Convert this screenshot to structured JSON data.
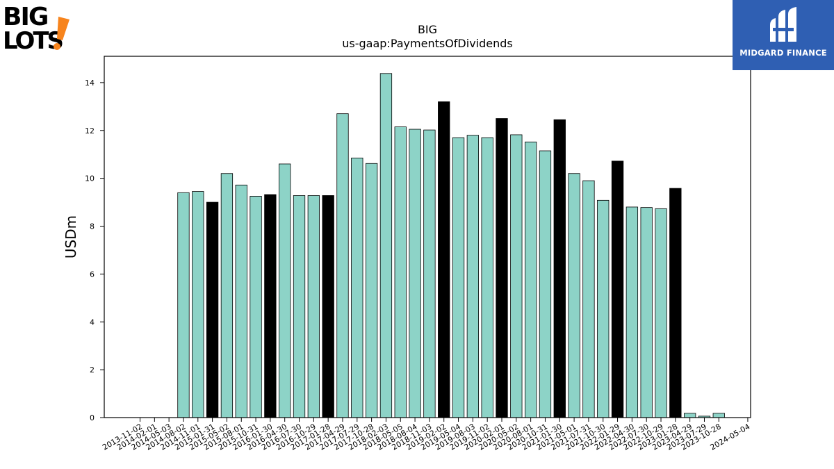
{
  "logos": {
    "left": {
      "name": "Big Lots",
      "line1": "BIG",
      "line2": "LOTS",
      "accent": "!",
      "colors": {
        "text": "#000000",
        "accent": "#f7841d"
      }
    },
    "right": {
      "name": "Midgard Finance",
      "text": "MIDGARD FINANCE",
      "colors": {
        "bg": "#2f5fb3",
        "fg": "#ffffff"
      }
    }
  },
  "chart_data": {
    "type": "bar",
    "title": "BIG",
    "subtitle": "us-gaap:PaymentsOfDividends",
    "ylabel": "USDm",
    "xlabel": "",
    "ylim": [
      0,
      15.1
    ],
    "yticks": [
      0,
      2,
      4,
      6,
      8,
      10,
      12,
      14
    ],
    "grid": false,
    "colors": {
      "quarterly": "#8dd3c7",
      "annual": "#000000",
      "edge": "#000000"
    },
    "categories": [
      "2013-11-02",
      "2014-02-01",
      "2014-05-03",
      "2014-08-02",
      "2014-11-01",
      "2015-01-31",
      "2015-05-02",
      "2015-08-01",
      "2015-10-31",
      "2016-01-30",
      "2016-04-30",
      "2016-07-30",
      "2016-10-29",
      "2017-01-28",
      "2017-04-29",
      "2017-07-29",
      "2017-10-28",
      "2018-02-03",
      "2018-05-05",
      "2018-08-04",
      "2018-11-03",
      "2019-02-02",
      "2019-05-04",
      "2019-08-03",
      "2019-11-02",
      "2020-02-01",
      "2020-05-02",
      "2020-08-01",
      "2020-10-31",
      "2021-01-30",
      "2021-05-01",
      "2021-07-31",
      "2021-10-30",
      "2022-01-29",
      "2022-04-30",
      "2022-07-30",
      "2022-10-29",
      "2023-01-28",
      "2023-04-29",
      "2023-07-29",
      "2023-10-28",
      "2024-02-03",
      "2024-05-04"
    ],
    "xticklabels": [
      "2013-11-02",
      "2014-02-01",
      "2014-05-03",
      "2014-08-02",
      "2014-11-01",
      "2015-01-31",
      "2015-05-02",
      "2015-08-01",
      "2015-10-31",
      "2016-01-30",
      "2016-04-30",
      "2016-07-30",
      "2016-10-29",
      "2017-01-28",
      "2017-04-29",
      "2017-07-29",
      "2017-10-28",
      "2018-02-03",
      "2018-05-05",
      "2018-08-04",
      "2018-11-03",
      "2019-02-02",
      "2019-05-04",
      "2019-08-03",
      "2019-11-02",
      "2020-02-01",
      "2020-05-02",
      "2020-08-01",
      "2020-10-31",
      "2021-01-30",
      "2021-05-01",
      "2021-07-31",
      "2021-10-30",
      "2022-01-29",
      "2022-04-30",
      "2022-07-30",
      "2022-10-29",
      "2023-01-28",
      "2023-04-29",
      "2023-07-29",
      "2023-10-28",
      "",
      "2024-05-04"
    ],
    "values": [
      null,
      null,
      null,
      9.4,
      9.45,
      9.0,
      10.2,
      9.72,
      9.25,
      9.32,
      10.6,
      9.28,
      9.28,
      9.28,
      12.7,
      10.85,
      10.62,
      14.38,
      12.15,
      12.05,
      12.02,
      13.2,
      11.7,
      11.8,
      11.7,
      12.5,
      11.82,
      11.52,
      11.15,
      12.45,
      10.2,
      9.9,
      9.08,
      10.72,
      8.8,
      8.78,
      8.73,
      9.58,
      0.18,
      0.06,
      0.18,
      null,
      null
    ],
    "annual": [
      false,
      false,
      false,
      false,
      false,
      true,
      false,
      false,
      false,
      true,
      false,
      false,
      false,
      true,
      false,
      false,
      false,
      false,
      false,
      false,
      false,
      true,
      false,
      false,
      false,
      true,
      false,
      false,
      false,
      true,
      false,
      false,
      false,
      true,
      false,
      false,
      false,
      true,
      false,
      false,
      false,
      false,
      false
    ]
  }
}
